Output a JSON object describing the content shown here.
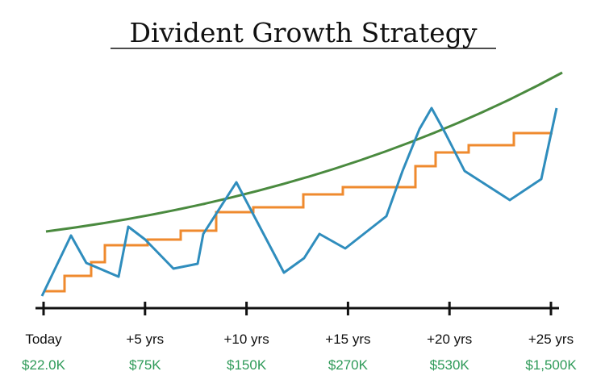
{
  "title": "Divident Growth Strategy",
  "milestones": [
    {
      "label": "Today",
      "value": "$22.0K"
    },
    {
      "label": "+5 yrs",
      "value": "$75K"
    },
    {
      "label": "+10 yrs",
      "value": "$150K"
    },
    {
      "label": "+15 yrs",
      "value": "$270K"
    },
    {
      "label": "+20 yrs",
      "value": "$530K"
    },
    {
      "label": "+25 yrs",
      "value": "$1,500K"
    }
  ]
}
